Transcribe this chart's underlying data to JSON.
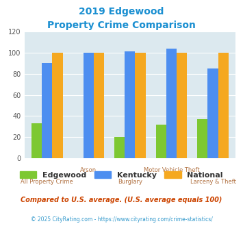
{
  "title_line1": "2019 Edgewood",
  "title_line2": "Property Crime Comparison",
  "categories": [
    "All Property Crime",
    "Arson",
    "Burglary",
    "Motor Vehicle Theft",
    "Larceny & Theft"
  ],
  "edgewood_values": [
    33,
    0,
    20,
    32,
    37
  ],
  "kentucky_values": [
    90,
    100,
    101,
    104,
    85
  ],
  "national_values": [
    100,
    100,
    100,
    100,
    100
  ],
  "edgewood_color": "#7dc832",
  "kentucky_color": "#4d8ef0",
  "national_color": "#f5a820",
  "bg_color": "#dce9ef",
  "ylim": [
    0,
    120
  ],
  "yticks": [
    0,
    20,
    40,
    60,
    80,
    100,
    120
  ],
  "bar_width": 0.25,
  "title_color": "#1a8fd1",
  "label_color_upper": "#b07040",
  "label_color_lower": "#b07040",
  "footnote1": "Compared to U.S. average. (U.S. average equals 100)",
  "footnote2": "© 2025 CityRating.com - https://www.cityrating.com/crime-statistics/",
  "footnote1_color": "#cc4400",
  "footnote2_color": "#3399cc"
}
